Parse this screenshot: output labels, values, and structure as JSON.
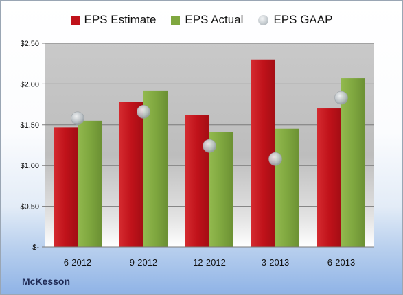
{
  "chart_data": {
    "type": "bar",
    "categories": [
      "6-2012",
      "9-2012",
      "12-2012",
      "3-2013",
      "6-2013"
    ],
    "series": [
      {
        "name": "EPS Estimate",
        "type": "bar",
        "color": "#c0121a",
        "values": [
          1.47,
          1.78,
          1.62,
          2.3,
          1.7
        ]
      },
      {
        "name": "EPS Actual",
        "type": "bar",
        "color": "#7fa73f",
        "values": [
          1.55,
          1.92,
          1.41,
          1.45,
          2.07
        ]
      },
      {
        "name": "EPS GAAP",
        "type": "scatter",
        "color": "#c2c8cc",
        "values": [
          1.58,
          1.66,
          1.24,
          1.08,
          1.83
        ]
      }
    ],
    "ylim": [
      0,
      2.5
    ],
    "yticks": [
      {
        "value": 2.5,
        "label": "$2.50"
      },
      {
        "value": 2.0,
        "label": "$2.00"
      },
      {
        "value": 1.5,
        "label": "$1.50"
      },
      {
        "value": 1.0,
        "label": "$1.00"
      },
      {
        "value": 0.5,
        "label": "$0.50"
      },
      {
        "value": 0,
        "label": "$-"
      }
    ],
    "grid": true,
    "legend_position": "top"
  },
  "company_label": "McKesson"
}
